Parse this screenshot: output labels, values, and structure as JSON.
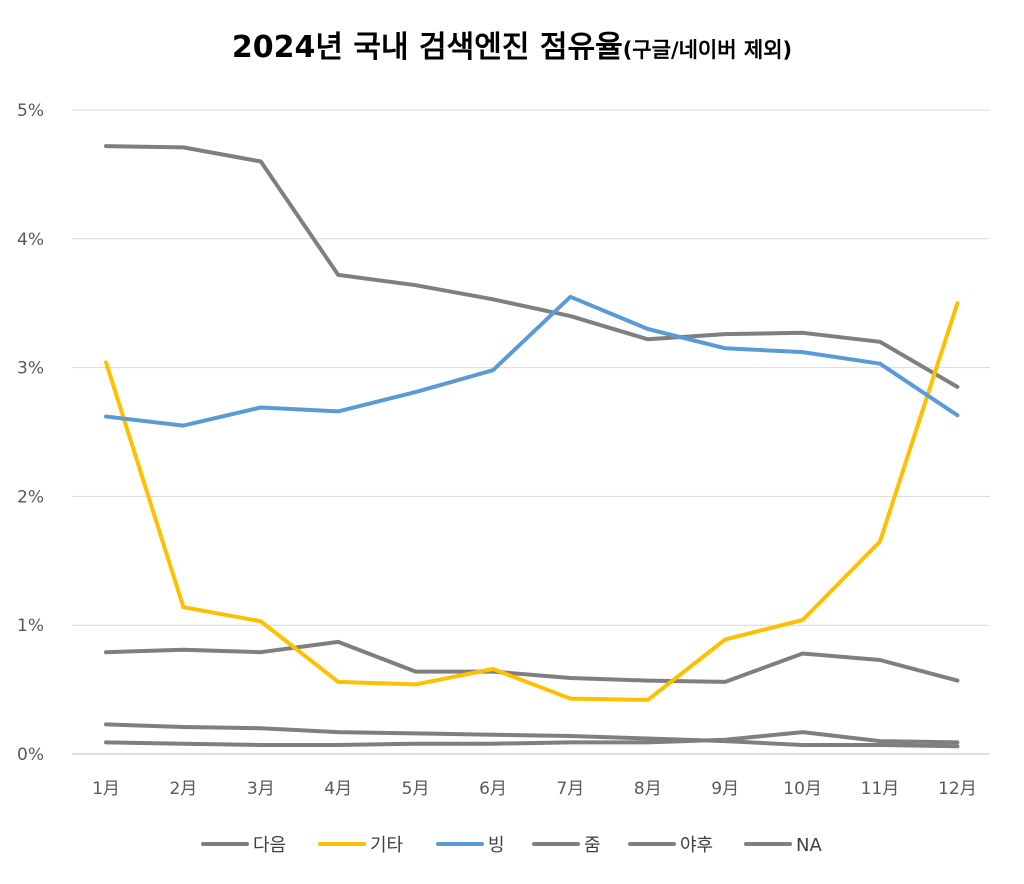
{
  "chart_data": {
    "type": "line",
    "title": "2024년 국내 검색엔진 점유율",
    "subtitle": "(구글/네이버 제외)",
    "categories": [
      "1月",
      "2月",
      "3月",
      "4月",
      "5月",
      "6月",
      "7月",
      "8月",
      "9月",
      "10月",
      "11月",
      "12月"
    ],
    "y_ticks": [
      "0%",
      "1%",
      "2%",
      "3%",
      "4%",
      "5%"
    ],
    "ylim": [
      0,
      5
    ],
    "y_unit": "%",
    "grid": true,
    "legend_position": "bottom",
    "series": [
      {
        "name": "다음",
        "color": "#7f7f7f",
        "values": [
          4.72,
          4.71,
          4.6,
          3.72,
          3.64,
          3.53,
          3.4,
          3.22,
          3.26,
          3.27,
          3.2,
          2.85
        ]
      },
      {
        "name": "기타",
        "color": "#ffc000",
        "values": [
          3.04,
          1.14,
          1.03,
          0.56,
          0.54,
          0.66,
          0.43,
          0.42,
          0.89,
          1.04,
          1.65,
          3.5
        ]
      },
      {
        "name": "빙",
        "color": "#5b9bd5",
        "values": [
          2.62,
          2.55,
          2.69,
          2.66,
          2.81,
          2.98,
          3.55,
          3.3,
          3.15,
          3.12,
          3.03,
          2.63
        ]
      },
      {
        "name": "줌",
        "color": "#7f7f7f",
        "values": [
          0.79,
          0.81,
          0.79,
          0.87,
          0.64,
          0.64,
          0.59,
          0.57,
          0.56,
          0.78,
          0.73,
          0.57
        ]
      },
      {
        "name": "야후",
        "color": "#7f7f7f",
        "values": [
          0.23,
          0.21,
          0.2,
          0.17,
          0.16,
          0.15,
          0.14,
          0.12,
          0.1,
          0.07,
          0.07,
          0.06
        ]
      },
      {
        "name": "NA",
        "color": "#7f7f7f",
        "values": [
          0.09,
          0.08,
          0.07,
          0.07,
          0.08,
          0.08,
          0.09,
          0.09,
          0.11,
          0.17,
          0.1,
          0.09
        ]
      }
    ]
  }
}
